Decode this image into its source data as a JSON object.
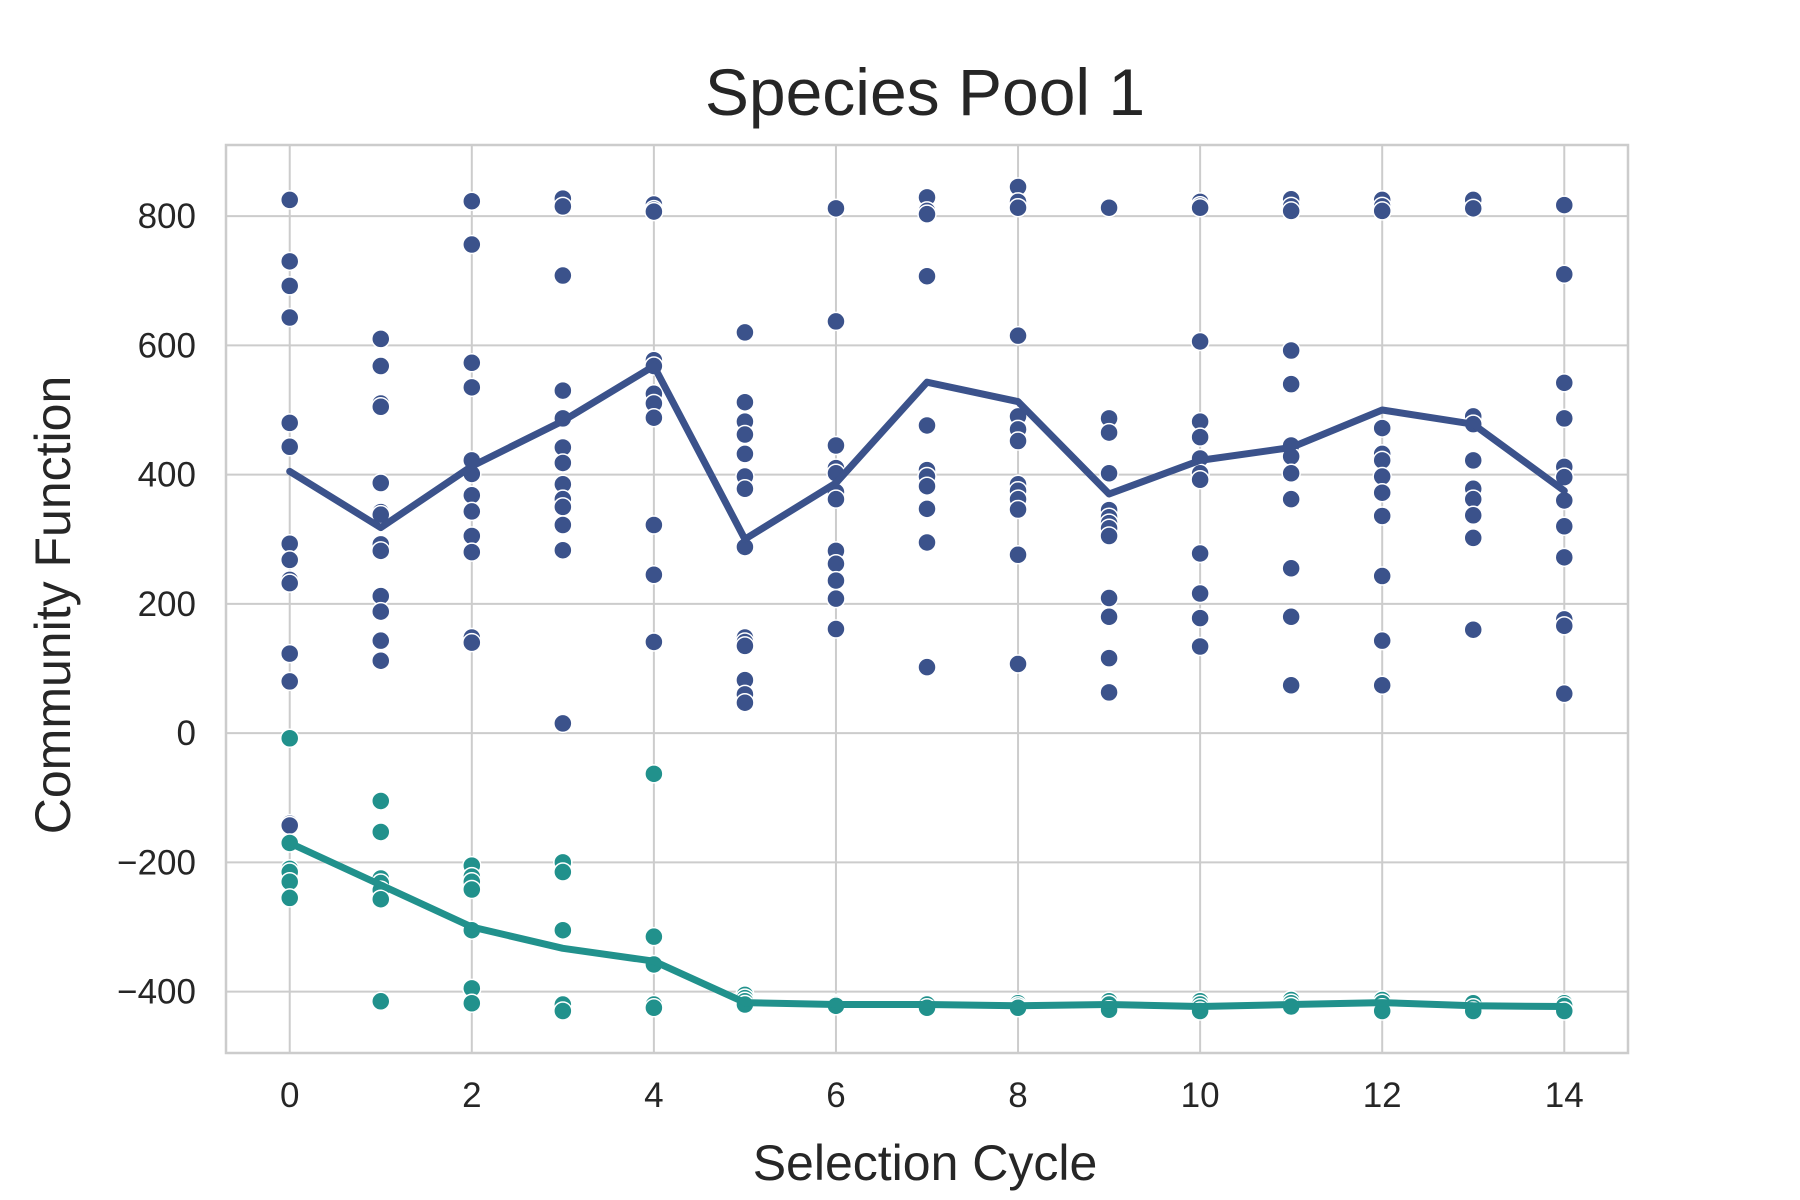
{
  "chart_data": {
    "type": "scatter",
    "title": "Species Pool 1",
    "xlabel": "Selection Cycle",
    "ylabel": "Community Function",
    "xlim": [
      -0.7,
      14.7
    ],
    "ylim": [
      -495,
      910
    ],
    "xticks": [
      0,
      2,
      4,
      6,
      8,
      10,
      12,
      14
    ],
    "yticks": [
      -400,
      -200,
      0,
      200,
      400,
      600,
      800
    ],
    "ytick_labels": [
      "−400",
      "−200",
      "0",
      "200",
      "400",
      "600",
      "800"
    ],
    "grid": true,
    "legend": "none",
    "series": [
      {
        "color": "#3b528b",
        "points": [
          [
            0,
            825
          ],
          [
            0,
            730
          ],
          [
            0,
            692
          ],
          [
            0,
            643
          ],
          [
            0,
            480
          ],
          [
            0,
            443
          ],
          [
            0,
            293
          ],
          [
            0,
            268
          ],
          [
            0,
            237
          ],
          [
            0,
            232
          ],
          [
            0,
            123
          ],
          [
            0,
            80
          ],
          [
            0,
            -140
          ],
          [
            0,
            -143
          ],
          [
            1,
            610
          ],
          [
            1,
            568
          ],
          [
            1,
            510
          ],
          [
            1,
            505
          ],
          [
            1,
            387
          ],
          [
            1,
            342
          ],
          [
            1,
            338
          ],
          [
            1,
            292
          ],
          [
            1,
            282
          ],
          [
            1,
            212
          ],
          [
            1,
            188
          ],
          [
            1,
            143
          ],
          [
            1,
            112
          ],
          [
            2,
            823
          ],
          [
            2,
            756
          ],
          [
            2,
            573
          ],
          [
            2,
            535
          ],
          [
            2,
            422
          ],
          [
            2,
            401
          ],
          [
            2,
            368
          ],
          [
            2,
            343
          ],
          [
            2,
            305
          ],
          [
            2,
            280
          ],
          [
            2,
            148
          ],
          [
            2,
            140
          ],
          [
            3,
            827
          ],
          [
            3,
            815
          ],
          [
            3,
            708
          ],
          [
            3,
            530
          ],
          [
            3,
            487
          ],
          [
            3,
            442
          ],
          [
            3,
            418
          ],
          [
            3,
            385
          ],
          [
            3,
            362
          ],
          [
            3,
            350
          ],
          [
            3,
            322
          ],
          [
            3,
            283
          ],
          [
            3,
            15
          ],
          [
            4,
            818
          ],
          [
            4,
            810
          ],
          [
            4,
            807
          ],
          [
            4,
            577
          ],
          [
            4,
            568
          ],
          [
            4,
            525
          ],
          [
            4,
            510
          ],
          [
            4,
            488
          ],
          [
            4,
            322
          ],
          [
            4,
            245
          ],
          [
            4,
            141
          ],
          [
            5,
            620
          ],
          [
            5,
            512
          ],
          [
            5,
            482
          ],
          [
            5,
            462
          ],
          [
            5,
            432
          ],
          [
            5,
            397
          ],
          [
            5,
            378
          ],
          [
            5,
            288
          ],
          [
            5,
            148
          ],
          [
            5,
            141
          ],
          [
            5,
            135
          ],
          [
            5,
            82
          ],
          [
            5,
            60
          ],
          [
            5,
            47
          ],
          [
            6,
            812
          ],
          [
            6,
            637
          ],
          [
            6,
            445
          ],
          [
            6,
            410
          ],
          [
            6,
            402
          ],
          [
            6,
            373
          ],
          [
            6,
            362
          ],
          [
            6,
            282
          ],
          [
            6,
            262
          ],
          [
            6,
            236
          ],
          [
            6,
            208
          ],
          [
            6,
            161
          ],
          [
            7,
            829
          ],
          [
            7,
            808
          ],
          [
            7,
            803
          ],
          [
            7,
            707
          ],
          [
            7,
            476
          ],
          [
            7,
            407
          ],
          [
            7,
            397
          ],
          [
            7,
            382
          ],
          [
            7,
            347
          ],
          [
            7,
            295
          ],
          [
            7,
            102
          ],
          [
            8,
            845
          ],
          [
            8,
            822
          ],
          [
            8,
            813
          ],
          [
            8,
            615
          ],
          [
            8,
            490
          ],
          [
            8,
            470
          ],
          [
            8,
            452
          ],
          [
            8,
            385
          ],
          [
            8,
            375
          ],
          [
            8,
            362
          ],
          [
            8,
            346
          ],
          [
            8,
            276
          ],
          [
            8,
            107
          ],
          [
            9,
            813
          ],
          [
            9,
            487
          ],
          [
            9,
            465
          ],
          [
            9,
            402
          ],
          [
            9,
            345
          ],
          [
            9,
            334
          ],
          [
            9,
            325
          ],
          [
            9,
            317
          ],
          [
            9,
            305
          ],
          [
            9,
            209
          ],
          [
            9,
            180
          ],
          [
            9,
            116
          ],
          [
            9,
            63
          ],
          [
            10,
            822
          ],
          [
            10,
            816
          ],
          [
            10,
            813
          ],
          [
            10,
            606
          ],
          [
            10,
            482
          ],
          [
            10,
            458
          ],
          [
            10,
            425
          ],
          [
            10,
            402
          ],
          [
            10,
            392
          ],
          [
            10,
            278
          ],
          [
            10,
            216
          ],
          [
            10,
            178
          ],
          [
            10,
            134
          ],
          [
            11,
            826
          ],
          [
            11,
            815
          ],
          [
            11,
            808
          ],
          [
            11,
            592
          ],
          [
            11,
            540
          ],
          [
            11,
            445
          ],
          [
            11,
            428
          ],
          [
            11,
            402
          ],
          [
            11,
            362
          ],
          [
            11,
            255
          ],
          [
            11,
            180
          ],
          [
            11,
            74
          ],
          [
            12,
            825
          ],
          [
            12,
            815
          ],
          [
            12,
            808
          ],
          [
            12,
            472
          ],
          [
            12,
            432
          ],
          [
            12,
            422
          ],
          [
            12,
            397
          ],
          [
            12,
            372
          ],
          [
            12,
            336
          ],
          [
            12,
            243
          ],
          [
            12,
            143
          ],
          [
            12,
            74
          ],
          [
            13,
            825
          ],
          [
            13,
            812
          ],
          [
            13,
            490
          ],
          [
            13,
            478
          ],
          [
            13,
            422
          ],
          [
            13,
            378
          ],
          [
            13,
            362
          ],
          [
            13,
            337
          ],
          [
            13,
            302
          ],
          [
            13,
            160
          ],
          [
            14,
            817
          ],
          [
            14,
            710
          ],
          [
            14,
            542
          ],
          [
            14,
            487
          ],
          [
            14,
            412
          ],
          [
            14,
            396
          ],
          [
            14,
            360
          ],
          [
            14,
            320
          ],
          [
            14,
            272
          ],
          [
            14,
            176
          ],
          [
            14,
            166
          ],
          [
            14,
            61
          ]
        ],
        "mean": [
          [
            0,
            405
          ],
          [
            1,
            318
          ],
          [
            2,
            413
          ],
          [
            3,
            483
          ],
          [
            4,
            568
          ],
          [
            5,
            300
          ],
          [
            6,
            387
          ],
          [
            7,
            543
          ],
          [
            8,
            513
          ],
          [
            9,
            370
          ],
          [
            10,
            422
          ],
          [
            11,
            442
          ],
          [
            12,
            500
          ],
          [
            13,
            478
          ],
          [
            14,
            375
          ]
        ]
      },
      {
        "color": "#21918c",
        "points": [
          [
            0,
            -8
          ],
          [
            0,
            -170
          ],
          [
            0,
            -210
          ],
          [
            0,
            -215
          ],
          [
            0,
            -230
          ],
          [
            0,
            -255
          ],
          [
            1,
            -105
          ],
          [
            1,
            -153
          ],
          [
            1,
            -225
          ],
          [
            1,
            -232
          ],
          [
            1,
            -243
          ],
          [
            1,
            -257
          ],
          [
            1,
            -415
          ],
          [
            2,
            -205
          ],
          [
            2,
            -222
          ],
          [
            2,
            -230
          ],
          [
            2,
            -242
          ],
          [
            2,
            -305
          ],
          [
            2,
            -395
          ],
          [
            2,
            -418
          ],
          [
            3,
            -200
          ],
          [
            3,
            -215
          ],
          [
            3,
            -305
          ],
          [
            3,
            -420
          ],
          [
            3,
            -430
          ],
          [
            4,
            -63
          ],
          [
            4,
            -315
          ],
          [
            4,
            -358
          ],
          [
            4,
            -420
          ],
          [
            4,
            -425
          ],
          [
            5,
            -405
          ],
          [
            5,
            -410
          ],
          [
            5,
            -415
          ],
          [
            5,
            -420
          ],
          [
            6,
            -418
          ],
          [
            6,
            -420
          ],
          [
            6,
            -422
          ],
          [
            7,
            -418
          ],
          [
            7,
            -420
          ],
          [
            7,
            -425
          ],
          [
            8,
            -418
          ],
          [
            8,
            -422
          ],
          [
            8,
            -425
          ],
          [
            9,
            -415
          ],
          [
            9,
            -420
          ],
          [
            9,
            -428
          ],
          [
            10,
            -415
          ],
          [
            10,
            -420
          ],
          [
            10,
            -425
          ],
          [
            10,
            -430
          ],
          [
            11,
            -413
          ],
          [
            11,
            -418
          ],
          [
            11,
            -423
          ],
          [
            12,
            -413
          ],
          [
            12,
            -418
          ],
          [
            12,
            -425
          ],
          [
            12,
            -430
          ],
          [
            13,
            -418
          ],
          [
            13,
            -425
          ],
          [
            13,
            -430
          ],
          [
            14,
            -418
          ],
          [
            14,
            -422
          ],
          [
            14,
            -430
          ]
        ],
        "mean": [
          [
            0,
            -170
          ],
          [
            1,
            -235
          ],
          [
            2,
            -300
          ],
          [
            3,
            -333
          ],
          [
            4,
            -353
          ],
          [
            5,
            -417
          ],
          [
            6,
            -420
          ],
          [
            7,
            -420
          ],
          [
            8,
            -422
          ],
          [
            9,
            -420
          ],
          [
            10,
            -423
          ],
          [
            11,
            -420
          ],
          [
            12,
            -417
          ],
          [
            13,
            -422
          ],
          [
            14,
            -423
          ]
        ]
      }
    ]
  }
}
